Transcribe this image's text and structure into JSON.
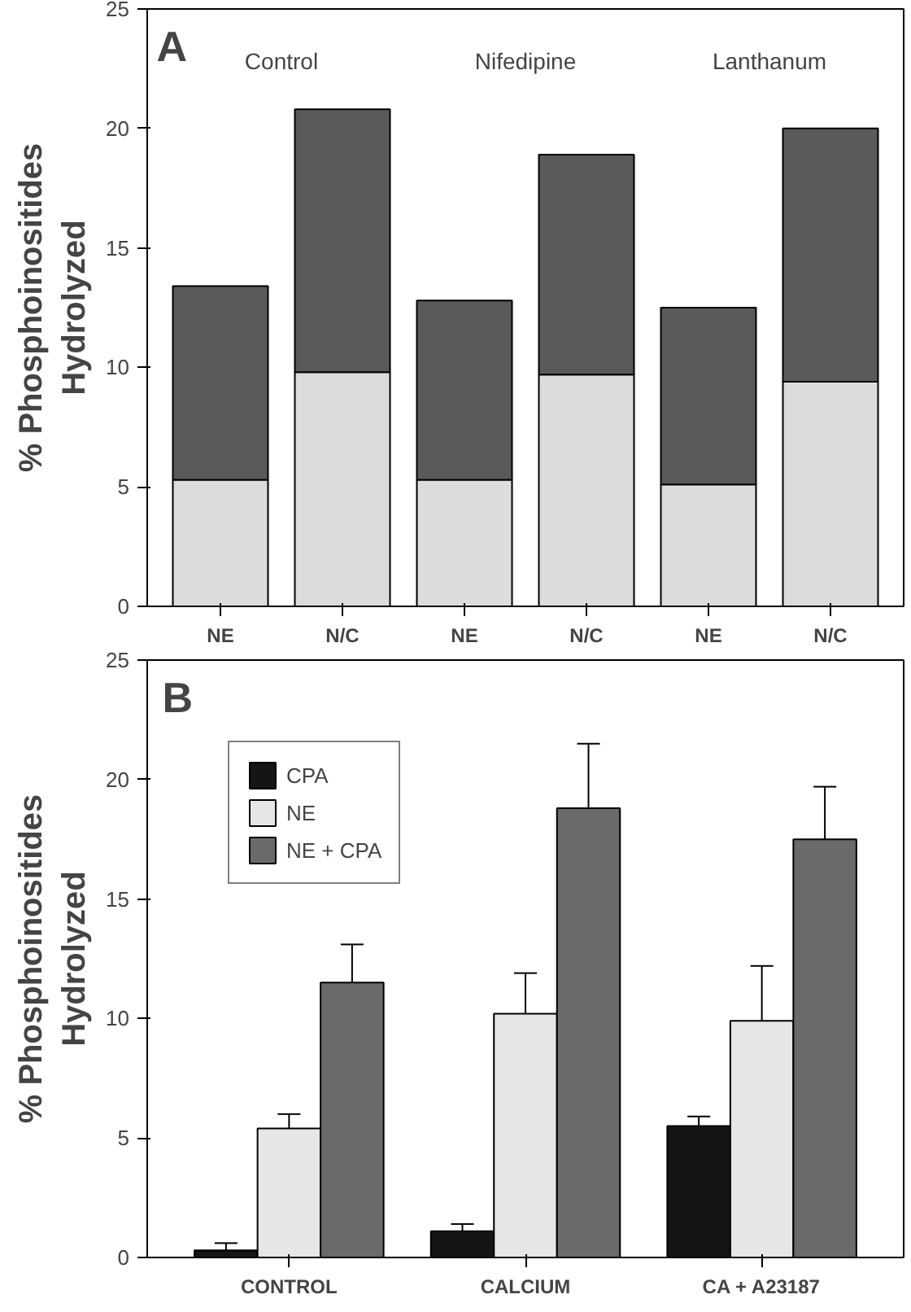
{
  "chart_data": [
    {
      "type": "bar",
      "stacked": true,
      "ylabel": "% Phosphoinositides\nHydrolyzed",
      "annotations": [
        "A",
        "Control",
        "Nifedipine",
        "Lanthanum"
      ],
      "categories": [
        "NE",
        "N/C",
        "NE",
        "N/C",
        "NE",
        "N/C"
      ],
      "series": [
        {
          "color": "#dcdcdc",
          "values": [
            5.3,
            9.8,
            5.3,
            9.7,
            5.1,
            9.4
          ]
        },
        {
          "color": "#5a5a5a",
          "values": [
            8.1,
            11.0,
            7.5,
            9.2,
            7.4,
            10.6
          ]
        }
      ],
      "ylim": [
        0,
        25
      ],
      "yticks": [
        0,
        5,
        10,
        15,
        20,
        25
      ],
      "grid": false,
      "legend": false
    },
    {
      "type": "bar",
      "ylabel": "% Phosphoinositides\nHydrolyzed",
      "annotations": [
        "B"
      ],
      "categories": [
        "CONTROL",
        "CALCIUM",
        "CA + A23187"
      ],
      "series": [
        {
          "name": "CPA",
          "color": "#151515",
          "values": [
            0.3,
            1.1,
            5.5
          ],
          "errors": [
            [
              0.3,
              0.6
            ],
            [
              1.1,
              1.4
            ],
            [
              5.5,
              5.9
            ]
          ]
        },
        {
          "name": "NE",
          "color": "#e6e6e6",
          "values": [
            5.4,
            10.2,
            9.9
          ],
          "errors": [
            [
              5.4,
              6.0
            ],
            [
              10.2,
              11.9
            ],
            [
              9.9,
              12.2
            ]
          ]
        },
        {
          "name": "NE + CPA",
          "color": "#6a6a6a",
          "values": [
            11.5,
            18.8,
            17.5
          ],
          "errors": [
            [
              11.5,
              13.1
            ],
            [
              18.8,
              21.5
            ],
            [
              17.5,
              19.7
            ]
          ]
        }
      ],
      "ylim": [
        0,
        25
      ],
      "yticks": [
        0,
        5,
        10,
        15,
        20,
        25
      ],
      "grid": false,
      "legend": "top left"
    }
  ]
}
